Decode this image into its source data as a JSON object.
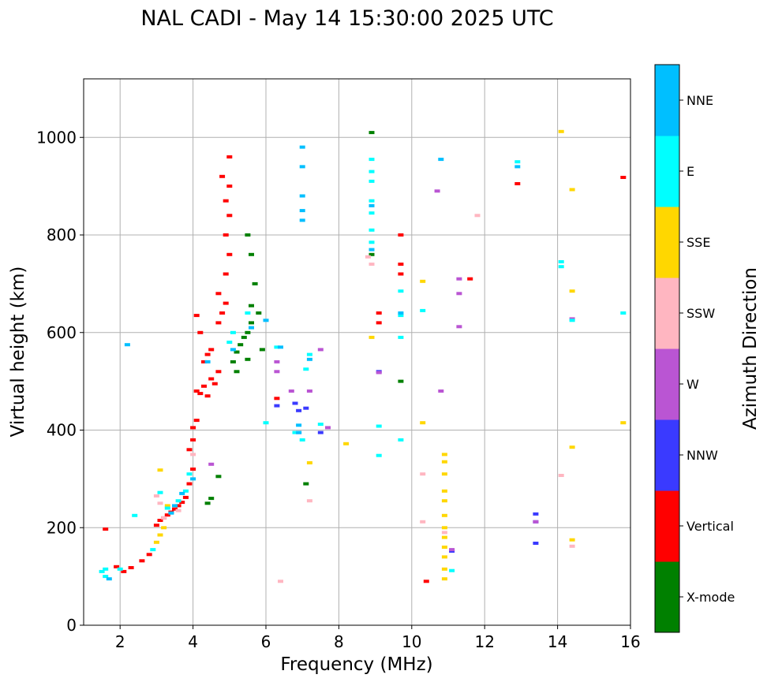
{
  "chart_data": {
    "type": "scatter",
    "title": "NAL CADI - May 14 15:30:00 2025 UTC",
    "xlabel": "Frequency (MHz)",
    "ylabel": "Virtual height (km)",
    "xlim": [
      1,
      16
    ],
    "ylim": [
      0,
      1120
    ],
    "xticks": [
      2,
      4,
      6,
      8,
      10,
      12,
      14,
      16
    ],
    "yticks": [
      0,
      200,
      400,
      600,
      800,
      1000
    ],
    "grid": true,
    "colorbar": {
      "label": "Azimuth Direction",
      "categories": [
        {
          "name": "X-mode",
          "color": "#008000"
        },
        {
          "name": "Vertical",
          "color": "#ff0000"
        },
        {
          "name": "NNW",
          "color": "#3a3aff"
        },
        {
          "name": "W",
          "color": "#ba55d3"
        },
        {
          "name": "SSW",
          "color": "#ffb6c1"
        },
        {
          "name": "SSE",
          "color": "#ffd700"
        },
        {
          "name": "E",
          "color": "#00ffff"
        },
        {
          "name": "NNE",
          "color": "#00bfff"
        }
      ]
    },
    "series": [
      {
        "name": "Vertical",
        "points": [
          [
            1.6,
            197
          ],
          [
            1.9,
            120
          ],
          [
            2.1,
            110
          ],
          [
            2.3,
            118
          ],
          [
            2.6,
            132
          ],
          [
            2.8,
            145
          ],
          [
            3.0,
            205
          ],
          [
            3.1,
            215
          ],
          [
            3.2,
            220
          ],
          [
            3.3,
            226
          ],
          [
            3.4,
            232
          ],
          [
            3.5,
            238
          ],
          [
            3.6,
            245
          ],
          [
            3.7,
            252
          ],
          [
            3.8,
            262
          ],
          [
            3.9,
            290
          ],
          [
            4.0,
            320
          ],
          [
            3.9,
            360
          ],
          [
            4.0,
            380
          ],
          [
            4.0,
            405
          ],
          [
            4.1,
            420
          ],
          [
            4.1,
            480
          ],
          [
            4.2,
            475
          ],
          [
            4.3,
            490
          ],
          [
            4.4,
            470
          ],
          [
            4.5,
            505
          ],
          [
            4.6,
            495
          ],
          [
            4.7,
            520
          ],
          [
            4.3,
            540
          ],
          [
            4.4,
            555
          ],
          [
            4.5,
            565
          ],
          [
            4.2,
            600
          ],
          [
            4.1,
            635
          ],
          [
            4.7,
            620
          ],
          [
            4.8,
            640
          ],
          [
            4.9,
            660
          ],
          [
            4.7,
            680
          ],
          [
            4.9,
            720
          ],
          [
            5.0,
            760
          ],
          [
            4.9,
            800
          ],
          [
            5.0,
            840
          ],
          [
            4.9,
            870
          ],
          [
            5.0,
            900
          ],
          [
            4.8,
            920
          ],
          [
            5.0,
            960
          ],
          [
            6.3,
            465
          ],
          [
            9.1,
            640
          ],
          [
            9.1,
            620
          ],
          [
            9.7,
            740
          ],
          [
            9.7,
            720
          ],
          [
            9.7,
            800
          ],
          [
            10.4,
            90
          ],
          [
            11.6,
            710
          ],
          [
            12.9,
            905
          ],
          [
            15.8,
            918
          ]
        ]
      },
      {
        "name": "X-mode",
        "points": [
          [
            4.7,
            305
          ],
          [
            4.5,
            260
          ],
          [
            4.4,
            250
          ],
          [
            5.1,
            540
          ],
          [
            5.2,
            560
          ],
          [
            5.3,
            575
          ],
          [
            5.4,
            590
          ],
          [
            5.5,
            600
          ],
          [
            5.6,
            620
          ],
          [
            5.2,
            520
          ],
          [
            5.5,
            545
          ],
          [
            5.6,
            655
          ],
          [
            5.8,
            640
          ],
          [
            5.7,
            700
          ],
          [
            5.6,
            760
          ],
          [
            5.5,
            800
          ],
          [
            5.9,
            565
          ],
          [
            7.1,
            290
          ],
          [
            8.9,
            1010
          ],
          [
            8.9,
            760
          ],
          [
            9.7,
            500
          ]
        ]
      },
      {
        "name": "NNW",
        "points": [
          [
            6.3,
            450
          ],
          [
            6.8,
            455
          ],
          [
            6.9,
            440
          ],
          [
            6.9,
            395
          ],
          [
            7.1,
            445
          ],
          [
            7.5,
            395
          ],
          [
            9.1,
            520
          ],
          [
            13.4,
            228
          ],
          [
            13.4,
            212
          ],
          [
            13.4,
            168
          ],
          [
            11.1,
            152
          ]
        ]
      },
      {
        "name": "W",
        "points": [
          [
            6.3,
            520
          ],
          [
            6.3,
            540
          ],
          [
            6.7,
            480
          ],
          [
            7.2,
            480
          ],
          [
            7.5,
            565
          ],
          [
            7.7,
            405
          ],
          [
            4.5,
            330
          ],
          [
            9.1,
            518
          ],
          [
            10.8,
            480
          ],
          [
            10.7,
            890
          ],
          [
            11.3,
            710
          ],
          [
            11.3,
            680
          ],
          [
            11.3,
            612
          ],
          [
            13.4,
            212
          ],
          [
            14.4,
            628
          ],
          [
            11.1,
            155
          ]
        ]
      },
      {
        "name": "SSW",
        "points": [
          [
            3.0,
            265
          ],
          [
            3.1,
            250
          ],
          [
            3.2,
            220
          ],
          [
            3.6,
            235
          ],
          [
            4.0,
            350
          ],
          [
            6.4,
            90
          ],
          [
            7.2,
            255
          ],
          [
            8.8,
            755
          ],
          [
            8.9,
            740
          ],
          [
            10.3,
            310
          ],
          [
            10.3,
            212
          ],
          [
            11.8,
            840
          ],
          [
            14.1,
            307
          ],
          [
            14.4,
            162
          ],
          [
            10.9,
            190
          ]
        ]
      },
      {
        "name": "SSE",
        "points": [
          [
            3.0,
            170
          ],
          [
            3.1,
            185
          ],
          [
            3.2,
            200
          ],
          [
            3.3,
            245
          ],
          [
            3.1,
            318
          ],
          [
            7.2,
            333
          ],
          [
            8.2,
            372
          ],
          [
            8.9,
            590
          ],
          [
            10.3,
            705
          ],
          [
            10.3,
            415
          ],
          [
            10.9,
            350
          ],
          [
            10.9,
            335
          ],
          [
            10.9,
            310
          ],
          [
            10.9,
            275
          ],
          [
            10.9,
            255
          ],
          [
            10.9,
            225
          ],
          [
            10.9,
            200
          ],
          [
            10.9,
            180
          ],
          [
            10.9,
            160
          ],
          [
            10.9,
            140
          ],
          [
            10.9,
            115
          ],
          [
            10.9,
            95
          ],
          [
            14.4,
            685
          ],
          [
            14.4,
            893
          ],
          [
            14.4,
            365
          ],
          [
            14.4,
            175
          ],
          [
            14.1,
            1012
          ],
          [
            15.8,
            415
          ]
        ]
      },
      {
        "name": "E",
        "points": [
          [
            1.6,
            115
          ],
          [
            1.6,
            100
          ],
          [
            1.5,
            110
          ],
          [
            2.0,
            115
          ],
          [
            2.4,
            225
          ],
          [
            2.9,
            155
          ],
          [
            3.1,
            272
          ],
          [
            3.3,
            240
          ],
          [
            3.6,
            255
          ],
          [
            3.8,
            275
          ],
          [
            3.9,
            310
          ],
          [
            5.0,
            580
          ],
          [
            5.1,
            600
          ],
          [
            5.5,
            640
          ],
          [
            6.0,
            415
          ],
          [
            6.3,
            570
          ],
          [
            6.8,
            395
          ],
          [
            7.0,
            380
          ],
          [
            7.1,
            525
          ],
          [
            7.2,
            555
          ],
          [
            7.5,
            412
          ],
          [
            8.9,
            955
          ],
          [
            8.9,
            930
          ],
          [
            8.9,
            910
          ],
          [
            8.9,
            870
          ],
          [
            8.9,
            845
          ],
          [
            8.9,
            810
          ],
          [
            8.9,
            785
          ],
          [
            9.1,
            408
          ],
          [
            9.1,
            348
          ],
          [
            9.7,
            685
          ],
          [
            9.7,
            635
          ],
          [
            9.7,
            590
          ],
          [
            9.7,
            380
          ],
          [
            10.3,
            645
          ],
          [
            11.1,
            112
          ],
          [
            12.9,
            950
          ],
          [
            14.1,
            745
          ],
          [
            14.1,
            735
          ],
          [
            14.4,
            625
          ],
          [
            15.8,
            640
          ]
        ]
      },
      {
        "name": "NNE",
        "points": [
          [
            1.7,
            95
          ],
          [
            2.2,
            575
          ],
          [
            3.4,
            230
          ],
          [
            3.5,
            245
          ],
          [
            3.7,
            270
          ],
          [
            4.0,
            300
          ],
          [
            4.4,
            540
          ],
          [
            5.1,
            565
          ],
          [
            5.6,
            610
          ],
          [
            6.0,
            625
          ],
          [
            6.4,
            570
          ],
          [
            6.9,
            395
          ],
          [
            6.9,
            410
          ],
          [
            7.0,
            830
          ],
          [
            7.0,
            850
          ],
          [
            7.0,
            880
          ],
          [
            7.0,
            940
          ],
          [
            7.0,
            980
          ],
          [
            7.2,
            545
          ],
          [
            8.9,
            860
          ],
          [
            8.9,
            770
          ],
          [
            9.7,
            640
          ],
          [
            10.8,
            955
          ],
          [
            12.9,
            940
          ]
        ]
      }
    ]
  }
}
